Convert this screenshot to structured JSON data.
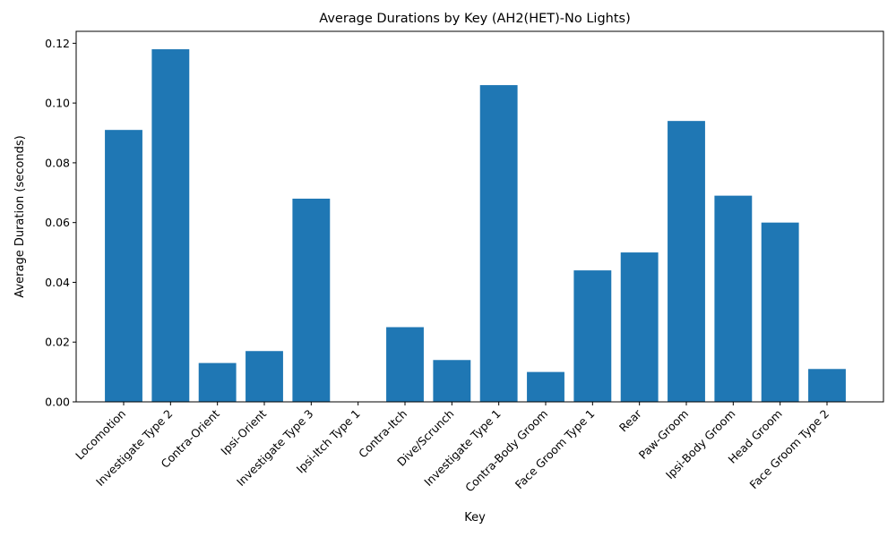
{
  "chart_data": {
    "type": "bar",
    "title": "Average Durations by Key (AH2(HET)-No Lights)",
    "xlabel": "Key",
    "ylabel": "Average Duration (seconds)",
    "ylim": [
      0,
      0.124
    ],
    "yticks": [
      "0.00",
      "0.02",
      "0.04",
      "0.06",
      "0.08",
      "0.10",
      "0.12"
    ],
    "grid": false,
    "bar_color": "#1f77b4",
    "categories": [
      "Locomotion",
      "Investigate Type 2",
      "Contra-Orient",
      "Ipsi-Orient",
      "Investigate Type 3",
      "Ipsi-Itch Type 1",
      "Contra-Itch",
      "Dive/Scrunch",
      "Investigate Type 1",
      "Contra-Body Groom",
      "Face Groom Type 1",
      "Rear",
      "Paw-Groom",
      "Ipsi-Body Groom",
      "Head Groom",
      "Face Groom Type 2"
    ],
    "values": [
      0.091,
      0.118,
      0.013,
      0.017,
      0.068,
      0.0,
      0.025,
      0.014,
      0.106,
      0.01,
      0.044,
      0.05,
      0.094,
      0.069,
      0.06,
      0.011
    ]
  }
}
